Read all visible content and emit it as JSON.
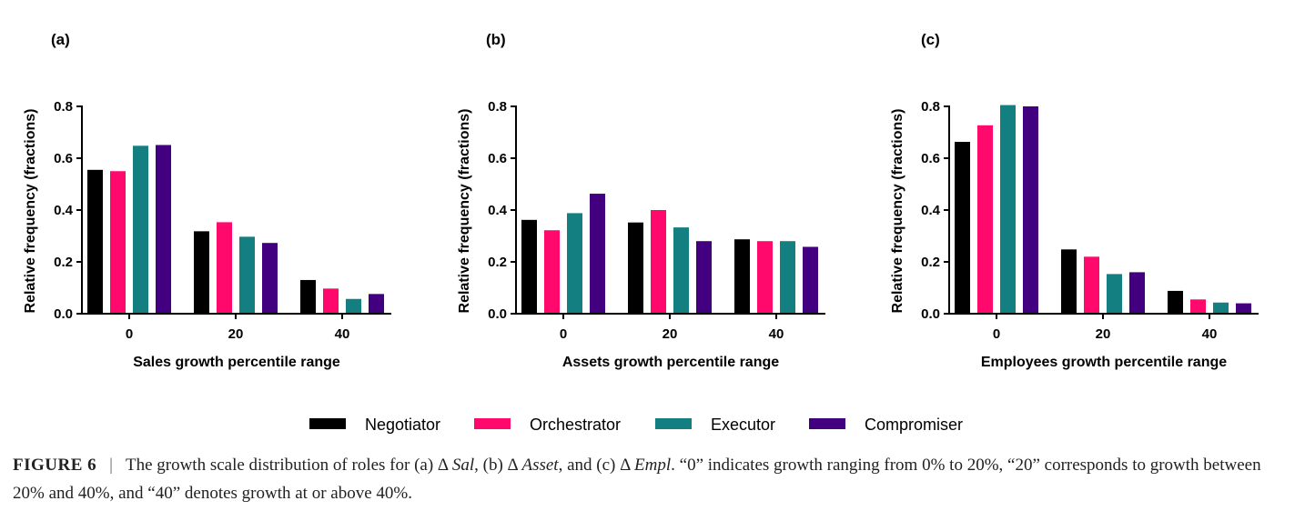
{
  "colors": {
    "Negotiator": "#000000",
    "Orchestrator": "#ff0a6c",
    "Executor": "#137f80",
    "Compromiser": "#420081"
  },
  "legend": [
    "Negotiator",
    "Orchestrator",
    "Executor",
    "Compromiser"
  ],
  "chart_data": [
    {
      "type": "bar",
      "panel": "(a)",
      "categories": [
        "0",
        "20",
        "40"
      ],
      "ylabel": "Relative frequency (fractions)",
      "xlabel": "Sales growth percentile range",
      "ylim": [
        0,
        0.8
      ],
      "yticks": [
        "0.0",
        "0.2",
        "0.4",
        "0.6",
        "0.8"
      ],
      "series": [
        {
          "name": "Negotiator",
          "values": [
            0.555,
            0.318,
            0.13
          ]
        },
        {
          "name": "Orchestrator",
          "values": [
            0.55,
            0.353,
            0.097
          ]
        },
        {
          "name": "Executor",
          "values": [
            0.648,
            0.297,
            0.057
          ]
        },
        {
          "name": "Compromiser",
          "values": [
            0.651,
            0.273,
            0.076
          ]
        }
      ]
    },
    {
      "type": "bar",
      "panel": "(b)",
      "categories": [
        "0",
        "20",
        "40"
      ],
      "ylabel": "Relative frequency (fractions)",
      "xlabel": "Assets growth percentile range",
      "ylim": [
        0,
        0.8
      ],
      "yticks": [
        "0.0",
        "0.2",
        "0.4",
        "0.6",
        "0.8"
      ],
      "series": [
        {
          "name": "Negotiator",
          "values": [
            0.362,
            0.352,
            0.287
          ]
        },
        {
          "name": "Orchestrator",
          "values": [
            0.322,
            0.4,
            0.28
          ]
        },
        {
          "name": "Executor",
          "values": [
            0.388,
            0.333,
            0.28
          ]
        },
        {
          "name": "Compromiser",
          "values": [
            0.463,
            0.28,
            0.258
          ]
        }
      ]
    },
    {
      "type": "bar",
      "panel": "(c)",
      "categories": [
        "0",
        "20",
        "40"
      ],
      "ylabel": "Relative frequency (fractions)",
      "xlabel": "Employees growth percentile range",
      "ylim": [
        0,
        0.8
      ],
      "yticks": [
        "0.0",
        "0.2",
        "0.4",
        "0.6",
        "0.8"
      ],
      "series": [
        {
          "name": "Negotiator",
          "values": [
            0.663,
            0.248,
            0.088
          ]
        },
        {
          "name": "Orchestrator",
          "values": [
            0.727,
            0.22,
            0.055
          ]
        },
        {
          "name": "Executor",
          "values": [
            0.805,
            0.153,
            0.043
          ]
        },
        {
          "name": "Compromiser",
          "values": [
            0.8,
            0.16,
            0.04
          ]
        }
      ]
    }
  ],
  "caption": {
    "label": "FIGURE 6",
    "separator": "|",
    "t1": "The growth scale distribution of roles for (a) Δ ",
    "i1": "Sal",
    "t2": ", (b) Δ ",
    "i2": "Asset",
    "t3": ", and (c) Δ ",
    "i3": "Empl",
    "t4": ". “0” indicates growth ranging from 0% to 20%, “20” corresponds to growth between 20% and 40%, and “40” denotes growth at or above 40%."
  }
}
